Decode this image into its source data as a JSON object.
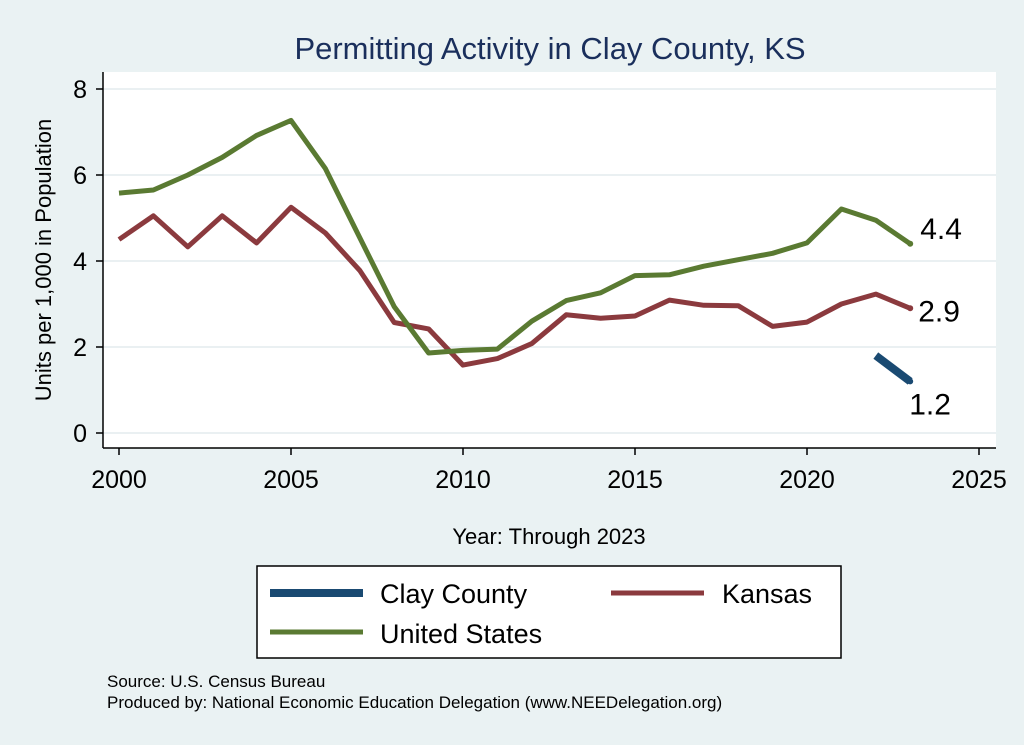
{
  "chart_data": {
    "type": "line",
    "title": "Permitting Activity in Clay County, KS",
    "xlabel": "Year: Through 2023",
    "ylabel": "Units per 1,000 in Population",
    "xlim": [
      2000,
      2025
    ],
    "ylim": [
      0,
      8
    ],
    "xticks": [
      "2000",
      "2005",
      "2010",
      "2015",
      "2020",
      "2025"
    ],
    "yticks": [
      "0",
      "2",
      "4",
      "6",
      "8"
    ],
    "grid": true,
    "legend_position": "bottom",
    "series": [
      {
        "name": "Clay County",
        "color": "#1a4a72",
        "x": [
          2022,
          2023
        ],
        "y": [
          1.8,
          1.2
        ],
        "end_label": "1.2"
      },
      {
        "name": "Kansas",
        "color": "#8b3a3e",
        "x": [
          2000,
          2001,
          2002,
          2003,
          2004,
          2005,
          2006,
          2007,
          2008,
          2009,
          2010,
          2011,
          2012,
          2013,
          2014,
          2015,
          2016,
          2017,
          2018,
          2019,
          2020,
          2021,
          2022,
          2023
        ],
        "y": [
          4.5,
          5.05,
          4.33,
          5.05,
          4.42,
          5.25,
          4.65,
          3.78,
          2.57,
          2.42,
          1.58,
          1.73,
          2.08,
          2.75,
          2.67,
          2.72,
          3.09,
          2.97,
          2.96,
          2.48,
          2.58,
          3.0,
          3.23,
          2.9
        ],
        "end_label": "2.9"
      },
      {
        "name": "United States",
        "color": "#5a7a32",
        "x": [
          2000,
          2001,
          2002,
          2003,
          2004,
          2005,
          2006,
          2007,
          2008,
          2009,
          2010,
          2011,
          2012,
          2013,
          2014,
          2015,
          2016,
          2017,
          2018,
          2019,
          2020,
          2021,
          2022,
          2023
        ],
        "y": [
          5.58,
          5.65,
          6.0,
          6.41,
          6.92,
          7.27,
          6.15,
          4.54,
          2.94,
          1.86,
          1.92,
          1.95,
          2.6,
          3.08,
          3.26,
          3.66,
          3.68,
          3.88,
          4.03,
          4.18,
          4.42,
          5.21,
          4.95,
          4.4
        ],
        "end_label": "4.4"
      }
    ],
    "legend": [
      "Clay County",
      "Kansas",
      "United States"
    ],
    "source_note": "Source: U.S. Census Bureau",
    "producer_note": "Produced by: National Economic Education Delegation (www.NEEDelegation.org)"
  }
}
